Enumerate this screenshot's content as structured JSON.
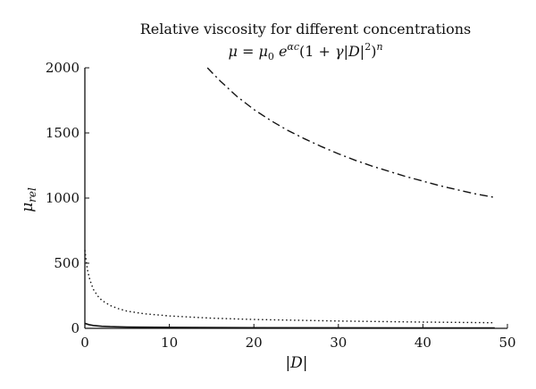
{
  "chart_data": {
    "type": "line",
    "title": "Relative viscosity for different concentrations",
    "subtitle": "μ = μ0 e^{αc}(1 + γ|D|²)^n",
    "xlabel": "|D|",
    "ylabel": "μrel",
    "xlim": [
      0,
      50
    ],
    "ylim": [
      0,
      2000
    ],
    "xticks": [
      0,
      10,
      20,
      30,
      40,
      50
    ],
    "yticks": [
      0,
      500,
      1000,
      1500,
      2000
    ],
    "grid": false,
    "series": [
      {
        "style": "dash-dot",
        "color": "#111111",
        "x": [
          14.5,
          16,
          18,
          20,
          22,
          24,
          26,
          28,
          30,
          32,
          34,
          36,
          38,
          40,
          42,
          44,
          46,
          48.5
        ],
        "y": [
          2000,
          1900,
          1780,
          1680,
          1595,
          1520,
          1455,
          1395,
          1340,
          1290,
          1245,
          1205,
          1165,
          1130,
          1095,
          1065,
          1035,
          1005
        ]
      },
      {
        "style": "dotted",
        "color": "#111111",
        "x": [
          0,
          0.3,
          0.6,
          1,
          1.5,
          2,
          3,
          4,
          5,
          7,
          10,
          15,
          20,
          30,
          40,
          48.5
        ],
        "y": [
          600,
          450,
          370,
          300,
          250,
          215,
          175,
          150,
          132,
          112,
          95,
          78,
          68,
          56,
          48,
          43
        ]
      },
      {
        "style": "solid",
        "color": "#111111",
        "x": [
          0,
          0.5,
          1,
          2,
          3,
          5,
          10,
          20,
          30,
          40,
          48.5
        ],
        "y": [
          38,
          28,
          22,
          16,
          13,
          10,
          7,
          5,
          4,
          3.5,
          3
        ]
      }
    ]
  }
}
